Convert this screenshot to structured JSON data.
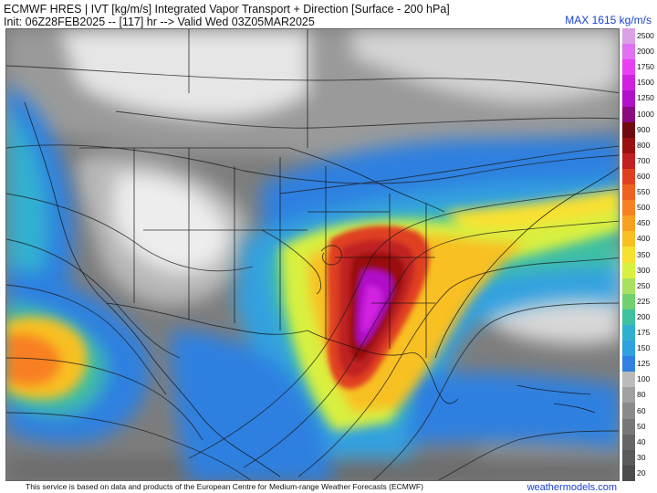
{
  "header": {
    "title": "ECMWF HRES | IVT [kg/m/s] Integrated Vapor Transport + Direction [Surface - 200 hPa]",
    "init_line": "Init: 06Z28FEB2025 -- [117] hr --> Valid Wed 03Z05MAR2025",
    "max_label": "MAX 1615 kg/m/s"
  },
  "legend": {
    "levels": [
      "2500",
      "2000",
      "1750",
      "1500",
      "1250",
      "1000",
      "900",
      "800",
      "700",
      "600",
      "550",
      "500",
      "450",
      "400",
      "350",
      "300",
      "250",
      "225",
      "200",
      "175",
      "150",
      "125",
      "100",
      "80",
      "60",
      "50",
      "40",
      "30",
      "20"
    ],
    "colors": [
      "#d9a0e6",
      "#e070f0",
      "#e840f0",
      "#d020e0",
      "#b010c8",
      "#8a0a80",
      "#6e0a10",
      "#9a1010",
      "#c02020",
      "#e04020",
      "#f06020",
      "#f88020",
      "#f8a020",
      "#f8c020",
      "#f8e030",
      "#d8f040",
      "#a8e060",
      "#70d070",
      "#40c0a0",
      "#30b0d0",
      "#30a0e0",
      "#2f80e0",
      "#bbbbbb",
      "#a0a0a0",
      "#8a8a8a",
      "#777777",
      "#666666",
      "#5a5a5a",
      "#4d4d4d"
    ]
  },
  "footer": {
    "text": "This service is based on data and products of the European Centre for Medium-range Weather Forecasts (ECMWF)",
    "credit": "weathermodels.com"
  }
}
